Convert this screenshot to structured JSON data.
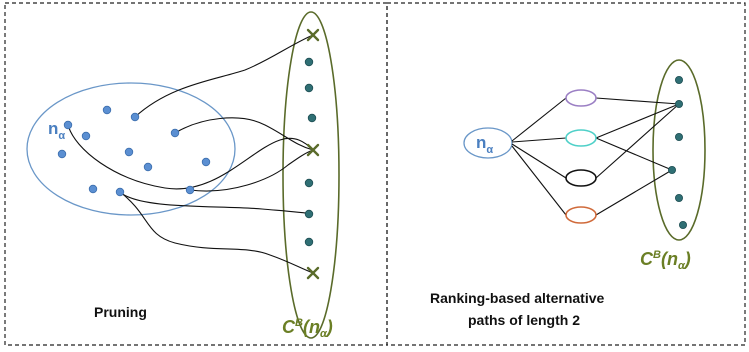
{
  "left_panel": {
    "node_label": "n",
    "node_subscript": "α",
    "candidate_label": {
      "c": "C",
      "sup": "B",
      "open": "(",
      "n": "n",
      "sub": "α",
      "close": ")"
    },
    "caption": "Pruning"
  },
  "right_panel": {
    "node_label": "n",
    "node_subscript": "α",
    "candidate_label": {
      "c": "C",
      "sup": "B",
      "open": "(",
      "n": "n",
      "sub": "α",
      "close": ")"
    },
    "caption_line1": "Ranking-based alternative",
    "caption_line2": "paths of length 2",
    "intermediate_colors": [
      "#9b7fc4",
      "#4fd0c8",
      "#111111",
      "#d06a3a"
    ]
  },
  "colors": {
    "set_ellipse": "#6a97c8",
    "candidate_ellipse": "#5a6b2a",
    "blue_node": "#5b8fd2",
    "green_node": "#2f6f74"
  }
}
